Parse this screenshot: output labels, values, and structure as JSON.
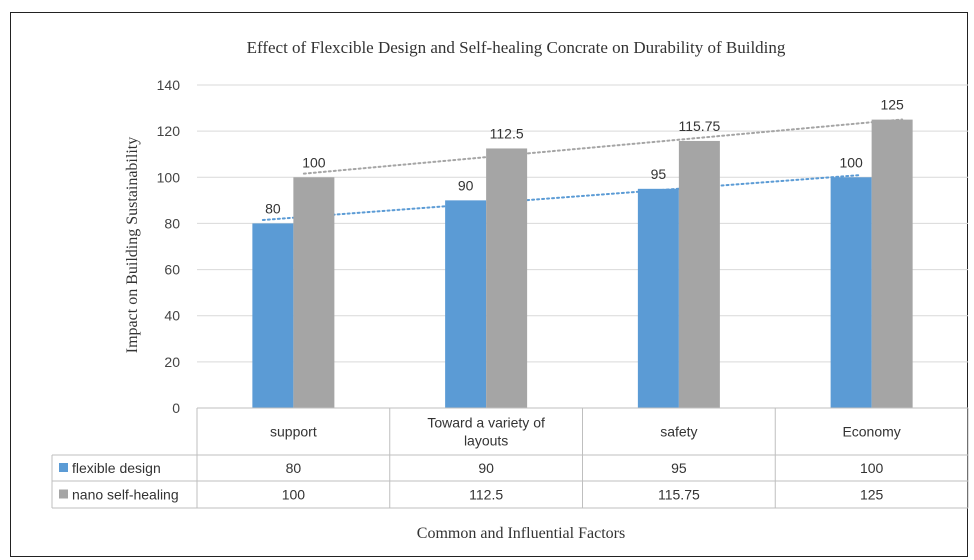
{
  "chart_data": {
    "type": "bar",
    "title": "Effect of Flexcible Design and Self-healing Concrate on Durability of Building",
    "xlabel": "Common and Influential Factors",
    "ylabel": "Impact on Building Sustainability",
    "categories": [
      "support",
      "Toward a variety of layouts",
      "safety",
      "Economy"
    ],
    "category_lines": [
      [
        "support"
      ],
      [
        "Toward a variety of",
        "layouts"
      ],
      [
        "safety"
      ],
      [
        "Economy"
      ]
    ],
    "series": [
      {
        "name": "flexible design",
        "color": "#5b9bd5",
        "values": [
          80,
          90,
          95,
          100
        ],
        "labels": [
          "80",
          "90",
          "95",
          "100"
        ]
      },
      {
        "name": "nano self-healing",
        "color": "#a5a5a5",
        "values": [
          100,
          112.5,
          115.75,
          125
        ],
        "labels": [
          "100",
          "112.5",
          "115.75",
          "125"
        ]
      }
    ],
    "trendlines": [
      {
        "series": "flexible design",
        "type": "linear",
        "color": "#5b9bd5",
        "style": "dotted"
      },
      {
        "series": "nano self-healing",
        "type": "linear",
        "color": "#a5a5a5",
        "style": "dotted"
      }
    ],
    "ylim": [
      0,
      140
    ],
    "yticks": [
      0,
      20,
      40,
      60,
      80,
      100,
      120,
      140
    ],
    "grid": true,
    "legend": "data-table"
  }
}
